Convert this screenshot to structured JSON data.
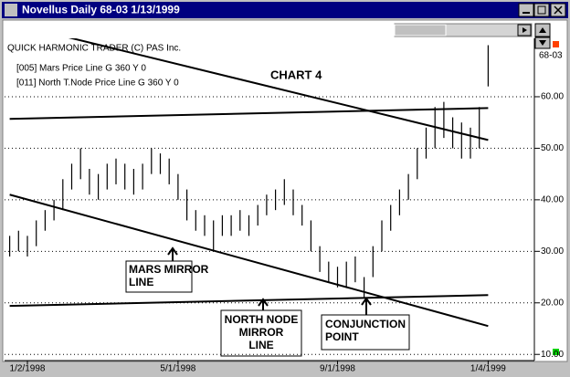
{
  "window": {
    "title": "Novellus Daily 68-03 1/13/1999"
  },
  "chart_data": {
    "type": "hilo",
    "header": "QUICK HARMONIC TRADER (C) PAS Inc.",
    "legend": [
      "[005] Mars Price Line G 360 Y 0",
      "[011] North T.Node Price Line G 360 Y 0"
    ],
    "chart_label": "CHART 4",
    "symbol": "68-03",
    "annotations": [
      {
        "lines": [
          "MARS MIRROR",
          "LINE"
        ]
      },
      {
        "lines": [
          "NORTH NODE",
          "MIRROR",
          "LINE"
        ]
      },
      {
        "lines": [
          "CONJUNCTION",
          "POINT"
        ]
      }
    ],
    "categories": [
      null,
      null,
      "1/2/1998",
      null,
      null,
      null,
      null,
      null,
      null,
      null,
      null,
      null,
      null,
      null,
      null,
      null,
      null,
      null,
      null,
      "5/1/1998",
      null,
      null,
      null,
      null,
      null,
      null,
      null,
      null,
      null,
      null,
      null,
      null,
      null,
      null,
      null,
      null,
      null,
      "9/1/1998",
      null,
      null,
      null,
      null,
      null,
      null,
      null,
      null,
      null,
      null,
      null,
      null,
      null,
      null,
      null,
      null,
      "1/4/1999"
    ],
    "high": [
      33,
      34,
      33,
      36,
      38,
      40,
      44,
      47,
      50,
      46,
      45,
      47,
      48,
      47,
      46,
      47,
      50,
      49,
      48,
      45,
      42,
      38,
      37,
      36,
      37,
      37,
      38,
      37,
      39,
      41,
      42,
      44,
      42,
      39,
      36,
      31,
      28,
      27,
      28,
      29,
      25,
      31,
      36,
      39,
      42,
      45,
      50,
      54,
      58,
      59,
      56,
      55,
      54,
      58,
      70
    ],
    "low": [
      29,
      30,
      29,
      31,
      34,
      36,
      38,
      42,
      44,
      41,
      40,
      42,
      43,
      42,
      41,
      42,
      45,
      45,
      43,
      40,
      36,
      34,
      33,
      30,
      33,
      33,
      34,
      33,
      35,
      37,
      38,
      39,
      37,
      35,
      30,
      26,
      24,
      23,
      23,
      24,
      21,
      25,
      30,
      34,
      37,
      40,
      44,
      48,
      50,
      52,
      50,
      48,
      48,
      50,
      62
    ],
    "trend_lines": [
      [
        74.3,
        51.6
      ],
      [
        55.7,
        57.8
      ],
      [
        41,
        15.5
      ],
      [
        19.4,
        21.5
      ]
    ],
    "ylim": [
      8.8,
      70.8
    ],
    "yticks": [
      {
        "value": 10,
        "label": "10.00"
      },
      {
        "value": 20,
        "label": "20.00"
      },
      {
        "value": 30,
        "label": "30.00"
      },
      {
        "value": 40,
        "label": "40.00"
      },
      {
        "value": 50,
        "label": "50.00"
      },
      {
        "value": 60,
        "label": "60.00"
      }
    ],
    "grid": true
  }
}
